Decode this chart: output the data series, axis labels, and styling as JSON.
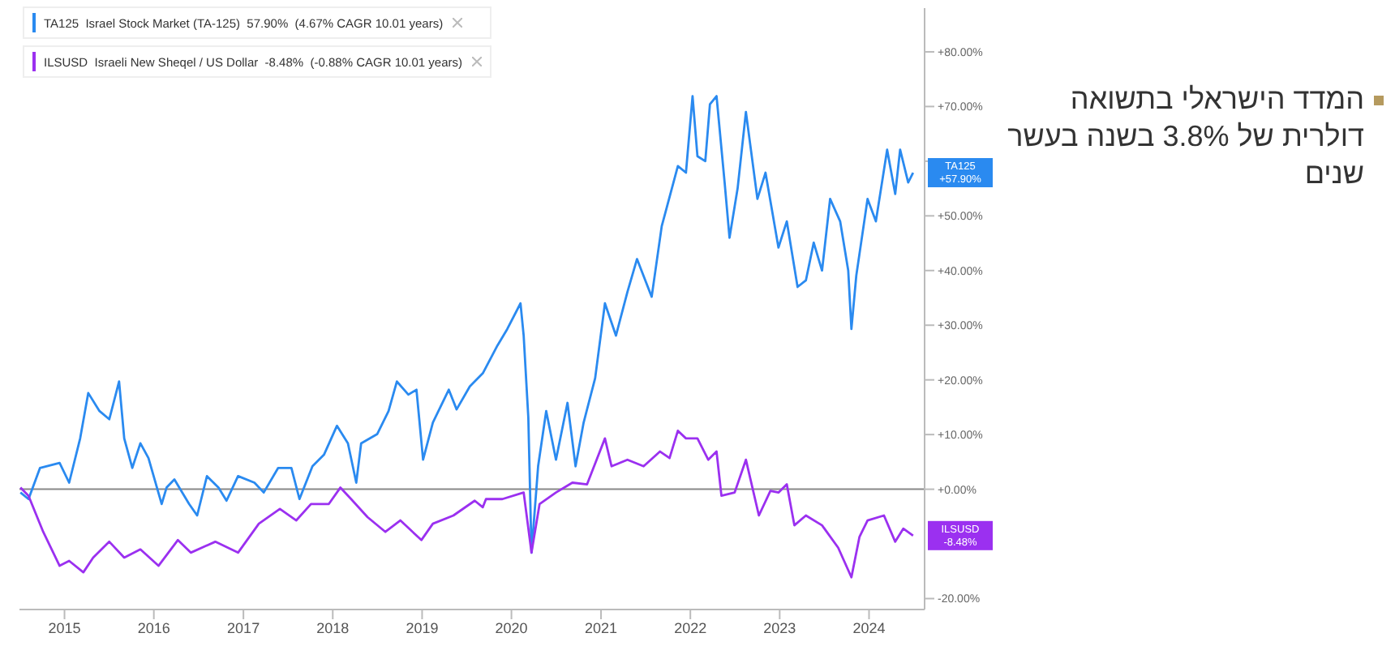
{
  "chart_data": {
    "type": "line",
    "legend": "top left",
    "marker": "none",
    "line_style": "solid",
    "xlim": [
      "2014-07-01",
      "2024-08-15"
    ],
    "xticks": [
      "2015",
      "2016",
      "2017",
      "2018",
      "2019",
      "2020",
      "2021",
      "2022",
      "2023",
      "2024"
    ],
    "ylim": [
      -22,
      88
    ],
    "yticks": [
      {
        "value": -20,
        "label": "-20.00%"
      },
      {
        "value": 0,
        "label": "+0.00%"
      },
      {
        "value": 10,
        "label": "+10.00%"
      },
      {
        "value": 20,
        "label": "+20.00%"
      },
      {
        "value": 30,
        "label": "+30.00%"
      },
      {
        "value": 40,
        "label": "+40.00%"
      },
      {
        "value": 50,
        "label": "+50.00%"
      },
      {
        "value": 60,
        "label": null
      },
      {
        "value": 70,
        "label": "+70.00%"
      },
      {
        "value": 80,
        "label": "+80.00%"
      }
    ],
    "ref_lines": [
      {
        "axis": "y",
        "value": 0,
        "color": "#888888"
      }
    ],
    "series": [
      {
        "name": "TA125  Israel Stock Market (TA-125)  57.90%  (4.67% CAGR 10.01 years)",
        "color": "#2a8af0",
        "x": [
          "2014-07-05",
          "2014-08-07",
          "2014-09-23",
          "2014-12-12",
          "2015-01-20",
          "2015-03-06",
          "2015-04-08",
          "2015-05-24",
          "2015-07-03",
          "2015-08-12",
          "2015-09-02",
          "2015-10-05",
          "2015-11-07",
          "2015-12-10",
          "2016-02-02",
          "2016-02-22",
          "2016-03-25",
          "2016-05-24",
          "2016-06-26",
          "2016-08-05",
          "2016-09-21",
          "2016-10-24",
          "2016-12-10",
          "2017-02-15",
          "2017-03-25",
          "2017-05-23",
          "2017-07-16",
          "2017-08-18",
          "2017-10-10",
          "2017-11-26",
          "2018-01-18",
          "2018-03-04",
          "2018-04-07",
          "2018-04-27",
          "2018-07-02",
          "2018-08-17",
          "2018-09-20",
          "2018-11-06",
          "2018-12-09",
          "2019-01-05",
          "2019-02-14",
          "2019-04-20",
          "2019-05-22",
          "2019-07-15",
          "2019-09-06",
          "2019-11-05",
          "2019-12-15",
          "2020-02-07",
          "2020-02-20",
          "2020-03-10",
          "2020-03-23",
          "2020-04-19",
          "2020-05-22",
          "2020-07-01",
          "2020-08-17",
          "2020-09-19",
          "2020-10-22",
          "2020-12-08",
          "2021-01-17",
          "2021-03-03",
          "2021-04-19",
          "2021-05-28",
          "2021-07-27",
          "2021-09-06",
          "2021-11-11",
          "2021-12-14",
          "2022-01-10",
          "2022-01-30",
          "2022-03-03",
          "2022-03-22",
          "2022-04-18",
          "2022-05-21",
          "2022-06-10",
          "2022-07-13",
          "2022-08-16",
          "2022-10-02",
          "2022-11-04",
          "2022-12-27",
          "2023-01-30",
          "2023-03-15",
          "2023-04-18",
          "2023-05-20",
          "2023-06-23",
          "2023-07-26",
          "2023-09-05",
          "2023-10-08",
          "2023-10-21",
          "2023-11-10",
          "2023-12-26",
          "2024-01-29",
          "2024-03-15",
          "2024-04-17",
          "2024-05-07",
          "2024-06-09",
          "2024-06-29"
        ],
        "values": [
          -0.6,
          -1.8,
          3.9,
          4.8,
          1.2,
          9.3,
          17.6,
          14.3,
          12.8,
          19.7,
          9.3,
          3.9,
          8.4,
          5.7,
          -2.7,
          0.3,
          1.8,
          -2.7,
          -4.8,
          2.4,
          0.3,
          -2.1,
          2.4,
          1.2,
          -0.6,
          3.9,
          3.9,
          -1.8,
          4.2,
          6.3,
          11.6,
          8.4,
          1.2,
          8.4,
          10.1,
          14.3,
          19.7,
          17.3,
          18.2,
          5.4,
          12.2,
          18.2,
          14.6,
          18.8,
          21.2,
          26.3,
          29.3,
          34.0,
          28.1,
          13.1,
          -11.6,
          4.2,
          14.3,
          5.4,
          15.8,
          4.2,
          12.2,
          20.3,
          34.0,
          28.1,
          36.1,
          42.1,
          35.2,
          48.1,
          59.1,
          57.9,
          71.9,
          60.9,
          60.0,
          70.4,
          71.9,
          56.1,
          46.0,
          55.0,
          69.0,
          53.1,
          57.9,
          44.2,
          49.0,
          37.0,
          38.2,
          45.1,
          40.0,
          53.1,
          49.0,
          40.0,
          29.3,
          39.1,
          53.1,
          49.0,
          62.1,
          54.0,
          62.1,
          56.1,
          57.9
        ]
      },
      {
        "name": "ILSUSD  Israeli New Sheqel / US Dollar  -8.48%  (-0.88% CAGR 10.01 years)",
        "color": "#9b30f0",
        "x": [
          "2014-07-05",
          "2014-08-07",
          "2014-10-06",
          "2014-12-12",
          "2015-01-20",
          "2015-03-19",
          "2015-04-28",
          "2015-07-03",
          "2015-09-02",
          "2015-11-07",
          "2016-01-20",
          "2016-04-08",
          "2016-05-31",
          "2016-09-08",
          "2016-12-10",
          "2017-03-05",
          "2017-05-30",
          "2017-08-05",
          "2017-10-04",
          "2017-12-16",
          "2018-02-01",
          "2018-03-17",
          "2018-05-23",
          "2018-08-04",
          "2018-10-04",
          "2018-12-29",
          "2019-02-14",
          "2019-05-09",
          "2019-08-04",
          "2019-09-06",
          "2019-09-19",
          "2019-11-25",
          "2020-02-20",
          "2020-03-23",
          "2020-04-25",
          "2020-07-01",
          "2020-09-06",
          "2020-11-05",
          "2020-12-14",
          "2021-01-17",
          "2021-02-13",
          "2021-04-19",
          "2021-06-24",
          "2021-08-30",
          "2021-10-08",
          "2021-11-11",
          "2021-12-14",
          "2022-01-30",
          "2022-03-15",
          "2022-04-18",
          "2022-05-08",
          "2022-07-01",
          "2022-08-16",
          "2022-10-08",
          "2022-11-24",
          "2022-12-27",
          "2023-01-30",
          "2023-03-02",
          "2023-04-18",
          "2023-06-23",
          "2023-08-28",
          "2023-10-21",
          "2023-11-23",
          "2023-12-26",
          "2024-03-02",
          "2024-04-17",
          "2024-05-20",
          "2024-06-29"
        ],
        "values": [
          0.3,
          -1.2,
          -7.8,
          -14.0,
          -13.1,
          -15.2,
          -12.5,
          -9.6,
          -12.5,
          -11.0,
          -14.0,
          -9.3,
          -11.6,
          -9.6,
          -11.6,
          -6.3,
          -3.6,
          -5.7,
          -2.7,
          -2.7,
          0.3,
          -1.8,
          -5.1,
          -7.8,
          -5.7,
          -9.3,
          -6.3,
          -4.8,
          -2.1,
          -3.3,
          -1.8,
          -1.8,
          -0.6,
          -11.6,
          -2.7,
          -0.6,
          1.2,
          0.9,
          5.4,
          9.3,
          4.2,
          5.4,
          4.2,
          6.9,
          5.7,
          10.7,
          9.3,
          9.3,
          5.4,
          6.9,
          -1.2,
          -0.6,
          5.4,
          -4.8,
          -0.3,
          -0.6,
          0.9,
          -6.6,
          -4.8,
          -6.6,
          -10.7,
          -16.1,
          -8.7,
          -5.7,
          -4.8,
          -9.6,
          -7.2,
          -8.5
        ]
      }
    ],
    "annotations": [
      {
        "text": "TA125\n+57.90%",
        "x": "2024-06-29",
        "y": 57.9
      },
      {
        "text": "ILSUSD\n-8.48%",
        "x": "2024-06-29",
        "y": -8.48
      },
      "המדד הישראלי בתשואה דולרית של 3.8% בשנה בעשר שנים"
    ]
  }
}
